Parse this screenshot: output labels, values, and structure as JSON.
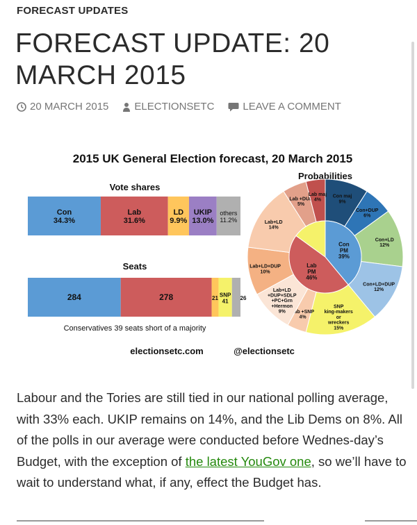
{
  "category": "FORECAST UPDATES",
  "title": "FORECAST UPDATE: 20 MARCH 2015",
  "meta": {
    "date": "20 MARCH 2015",
    "author": "ELECTIONSETC",
    "comment": "LEAVE A COMMENT",
    "icon_clock": "clock-icon",
    "icon_author": "person-icon",
    "icon_comment": "comment-icon"
  },
  "chart_data": {
    "type": "infographic",
    "title": "2015 UK General Election forecast, 20 March 2015",
    "vote_shares": {
      "title": "Vote shares",
      "segments": [
        {
          "party": "Con",
          "value": "34.3%",
          "share": 34.3,
          "color": "#5b9bd5"
        },
        {
          "party": "Lab",
          "value": "31.6%",
          "share": 31.6,
          "color": "#cd5c5c"
        },
        {
          "party": "LD",
          "value": "9.9%",
          "share": 9.9,
          "color": "#ffc65c"
        },
        {
          "party": "UKIP",
          "value": "13.0%",
          "share": 13.0,
          "color": "#9b7fc4"
        },
        {
          "party": "others",
          "value": "11.2%",
          "share": 11.2,
          "color": "#b0b0b0"
        }
      ]
    },
    "seats": {
      "title": "Seats",
      "segments": [
        {
          "party": "Con",
          "label": "284",
          "value": 284,
          "color": "#5b9bd5"
        },
        {
          "party": "Lab",
          "label": "278",
          "value": 278,
          "color": "#cd5c5c"
        },
        {
          "party": "LD",
          "label": "21",
          "value": 21,
          "color": "#ffc65c"
        },
        {
          "party": "SNP",
          "label": "SNP 41",
          "value": 41,
          "color": "#f5f26a"
        },
        {
          "party": "Other",
          "label": "26",
          "value": 26,
          "color": "#b0b0b0"
        }
      ],
      "note": "Conservatives 39 seats short of a majority"
    },
    "probabilities": {
      "title": "Probabilities",
      "inner": [
        {
          "label": "Con PM 39%",
          "value": 39,
          "color": "#5b9bd5"
        },
        {
          "label": "Lab PM 46%",
          "value": 46,
          "color": "#cd5c5c"
        },
        {
          "label": "",
          "value": 15,
          "color": "#f5f26a"
        }
      ],
      "outer": [
        {
          "label": "Con maj 9%",
          "value": 9,
          "color": "#1f4e79"
        },
        {
          "label": "Con+DUP 6%",
          "value": 6,
          "color": "#2e75b6"
        },
        {
          "label": "Con+LD 12%",
          "value": 12,
          "color": "#a9d18e"
        },
        {
          "label": "Con+LD+DUP 12%",
          "value": 12,
          "color": "#9dc3e6"
        },
        {
          "label": "SNP king-makers or wreckers 15%",
          "value": 15,
          "color": "#f5f26a"
        },
        {
          "label": "Lab +SNP 4%",
          "value": 4,
          "color": "#f8cbad"
        },
        {
          "label": "Lab+LD +DUP+SDLP +PC+Grn +Hermon 9%",
          "value": 9,
          "color": "#fbe5d6"
        },
        {
          "label": "Lab+LD+DUP 10%",
          "value": 10,
          "color": "#f4b183"
        },
        {
          "label": "Lab+LD 14%",
          "value": 14,
          "color": "#f8cbad"
        },
        {
          "label": "Lab +DUP 5%",
          "value": 5,
          "color": "#e2a08a"
        },
        {
          "label": "Lab maj 4%",
          "value": 4,
          "color": "#c0504d"
        }
      ]
    },
    "credits": [
      "electionsetc.com",
      "@electionsetc"
    ]
  },
  "paragraph": {
    "before": "Labour and the Tories are still tied in our national polling average, with 33% each. UKIP remains on 14%, and the Lib Dems on 8%. All of the polls in our average were conducted before Wednes-day’s Budget, with the exception of ",
    "link": "the latest YouGov one",
    "after": ", so we’ll have to wait to understand what, if any, effect the Budget has."
  }
}
